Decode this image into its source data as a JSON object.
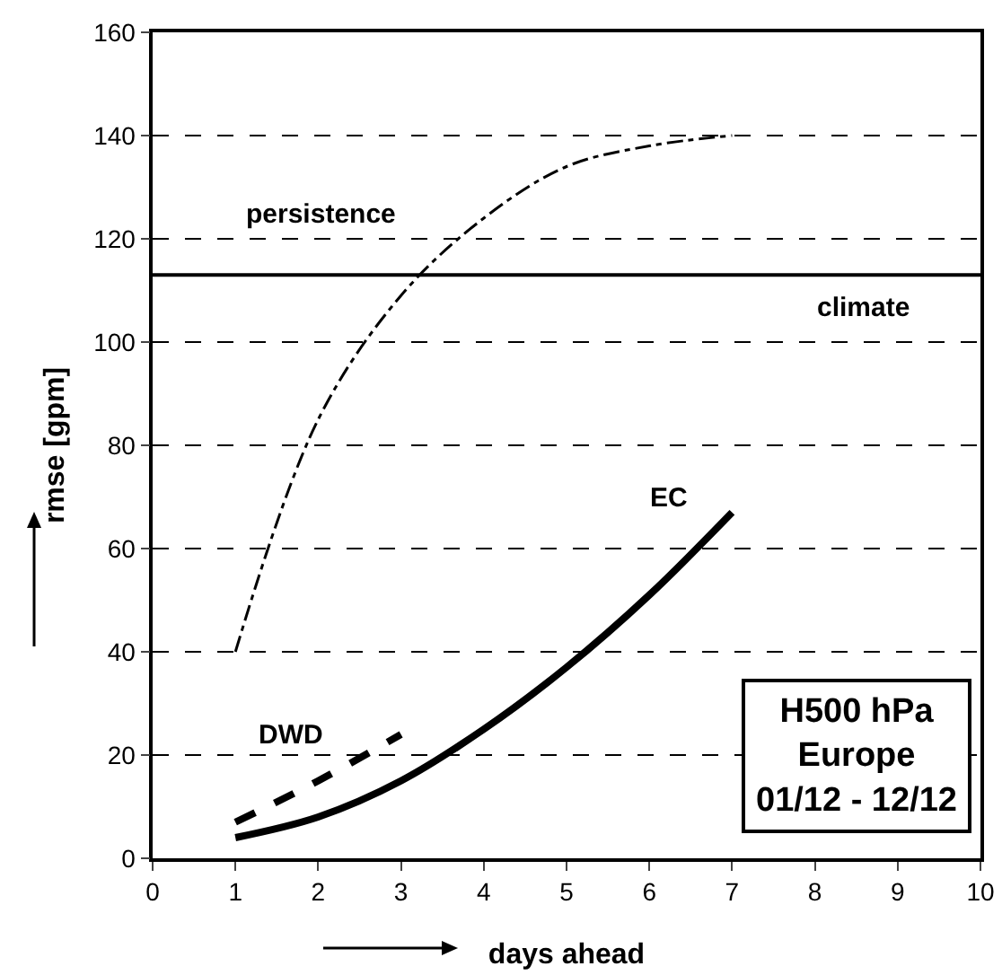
{
  "chart_data": {
    "type": "line",
    "xlabel": "days ahead",
    "ylabel": "rmse [gpm]",
    "x": [
      1,
      2,
      3,
      4,
      5,
      6,
      7
    ],
    "series": [
      {
        "name": "persistence",
        "color": "#000000",
        "line_style": "dashdot",
        "values": [
          40,
          85,
          109,
          124,
          134,
          138,
          140
        ]
      },
      {
        "name": "EC",
        "color": "#000000",
        "line_style": "solid",
        "values": [
          4,
          8,
          15,
          25,
          37,
          51,
          67
        ]
      },
      {
        "name": "DWD",
        "color": "#000000",
        "line_style": "dashed",
        "x": [
          1,
          2,
          3
        ],
        "values": [
          7,
          15,
          24
        ]
      }
    ],
    "ref_lines": [
      {
        "axis": "y",
        "value": 113,
        "label": "climate",
        "color": "#000000",
        "line_style": "solid"
      }
    ],
    "annotations": [
      "H500 hPa\nEurope\n01/12 - 12/12"
    ],
    "xlim": [
      0,
      10
    ],
    "xticks": [
      0,
      1,
      2,
      3,
      4,
      5,
      6,
      7,
      8,
      9,
      10
    ],
    "ylim": [
      0,
      160
    ],
    "yticks": [
      0,
      20,
      40,
      60,
      80,
      100,
      120,
      140,
      160
    ],
    "grid": "y",
    "legend": false,
    "marker": "none"
  }
}
